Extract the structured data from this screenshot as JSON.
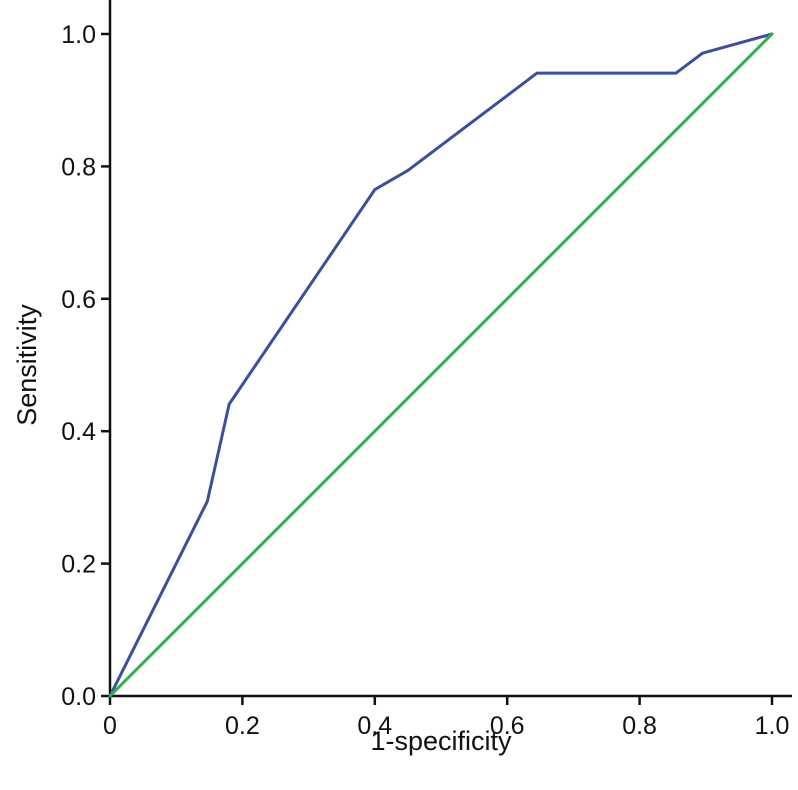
{
  "chart_data": {
    "type": "line",
    "title": "",
    "xlabel": "1-specificity",
    "ylabel": "Sensitivity",
    "xlim": [
      0,
      1.0
    ],
    "ylim": [
      0,
      1.0
    ],
    "xticks": [
      0,
      0.2,
      0.4,
      0.6,
      0.8,
      1.0
    ],
    "xtick_labels": [
      "0",
      "0.2",
      "0.4",
      "0.6",
      "0.8",
      "1.0"
    ],
    "yticks": [
      0,
      0.2,
      0.4,
      0.6,
      0.8,
      1.0
    ],
    "ytick_labels": [
      "0.0",
      "0.2",
      "0.4",
      "0.6",
      "0.8",
      "1.0"
    ],
    "grid": false,
    "legend": "none",
    "series": [
      {
        "color": "#3a4f9e",
        "x": [
          0,
          0.147,
          0.18,
          0.4,
          0.45,
          0.645,
          0.855,
          0.895,
          1.0
        ],
        "y": [
          0,
          0.294,
          0.441,
          0.765,
          0.794,
          0.941,
          0.941,
          0.971,
          1.0
        ]
      },
      {
        "color": "#2db34a",
        "x": [
          0,
          1.0
        ],
        "y": [
          0,
          1.0
        ]
      }
    ]
  }
}
